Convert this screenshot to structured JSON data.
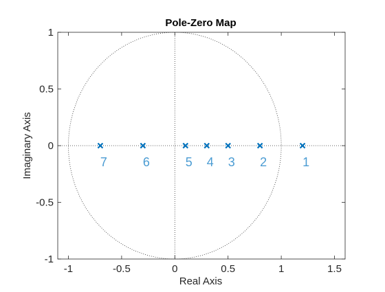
{
  "chart_data": {
    "type": "scatter",
    "title": "Pole-Zero Map",
    "xlabel": "Real Axis",
    "ylabel": "Imaginary Axis",
    "xlim": [
      -1.1,
      1.6
    ],
    "ylim": [
      -1,
      1
    ],
    "xticks": [
      -1,
      -0.5,
      0,
      0.5,
      1,
      1.5
    ],
    "xtick_labels": [
      "-1",
      "-0.5",
      "0",
      "0.5",
      "1",
      "1.5"
    ],
    "yticks": [
      -1,
      -0.5,
      0,
      0.5,
      1
    ],
    "ytick_labels": [
      "-1",
      "-0.5",
      "0",
      "0.5",
      "1"
    ],
    "grid": false,
    "unit_circle": true,
    "marker": "x",
    "marker_color": "#0072BD",
    "label_color": "#4B9CD3",
    "poles": [
      {
        "x": 1.2,
        "y": 0,
        "label": "1"
      },
      {
        "x": 0.8,
        "y": 0,
        "label": "2"
      },
      {
        "x": 0.5,
        "y": 0,
        "label": "3"
      },
      {
        "x": 0.3,
        "y": 0,
        "label": "4"
      },
      {
        "x": 0.1,
        "y": 0,
        "label": "5"
      },
      {
        "x": -0.3,
        "y": 0,
        "label": "6"
      },
      {
        "x": -0.7,
        "y": 0,
        "label": "7"
      }
    ]
  }
}
